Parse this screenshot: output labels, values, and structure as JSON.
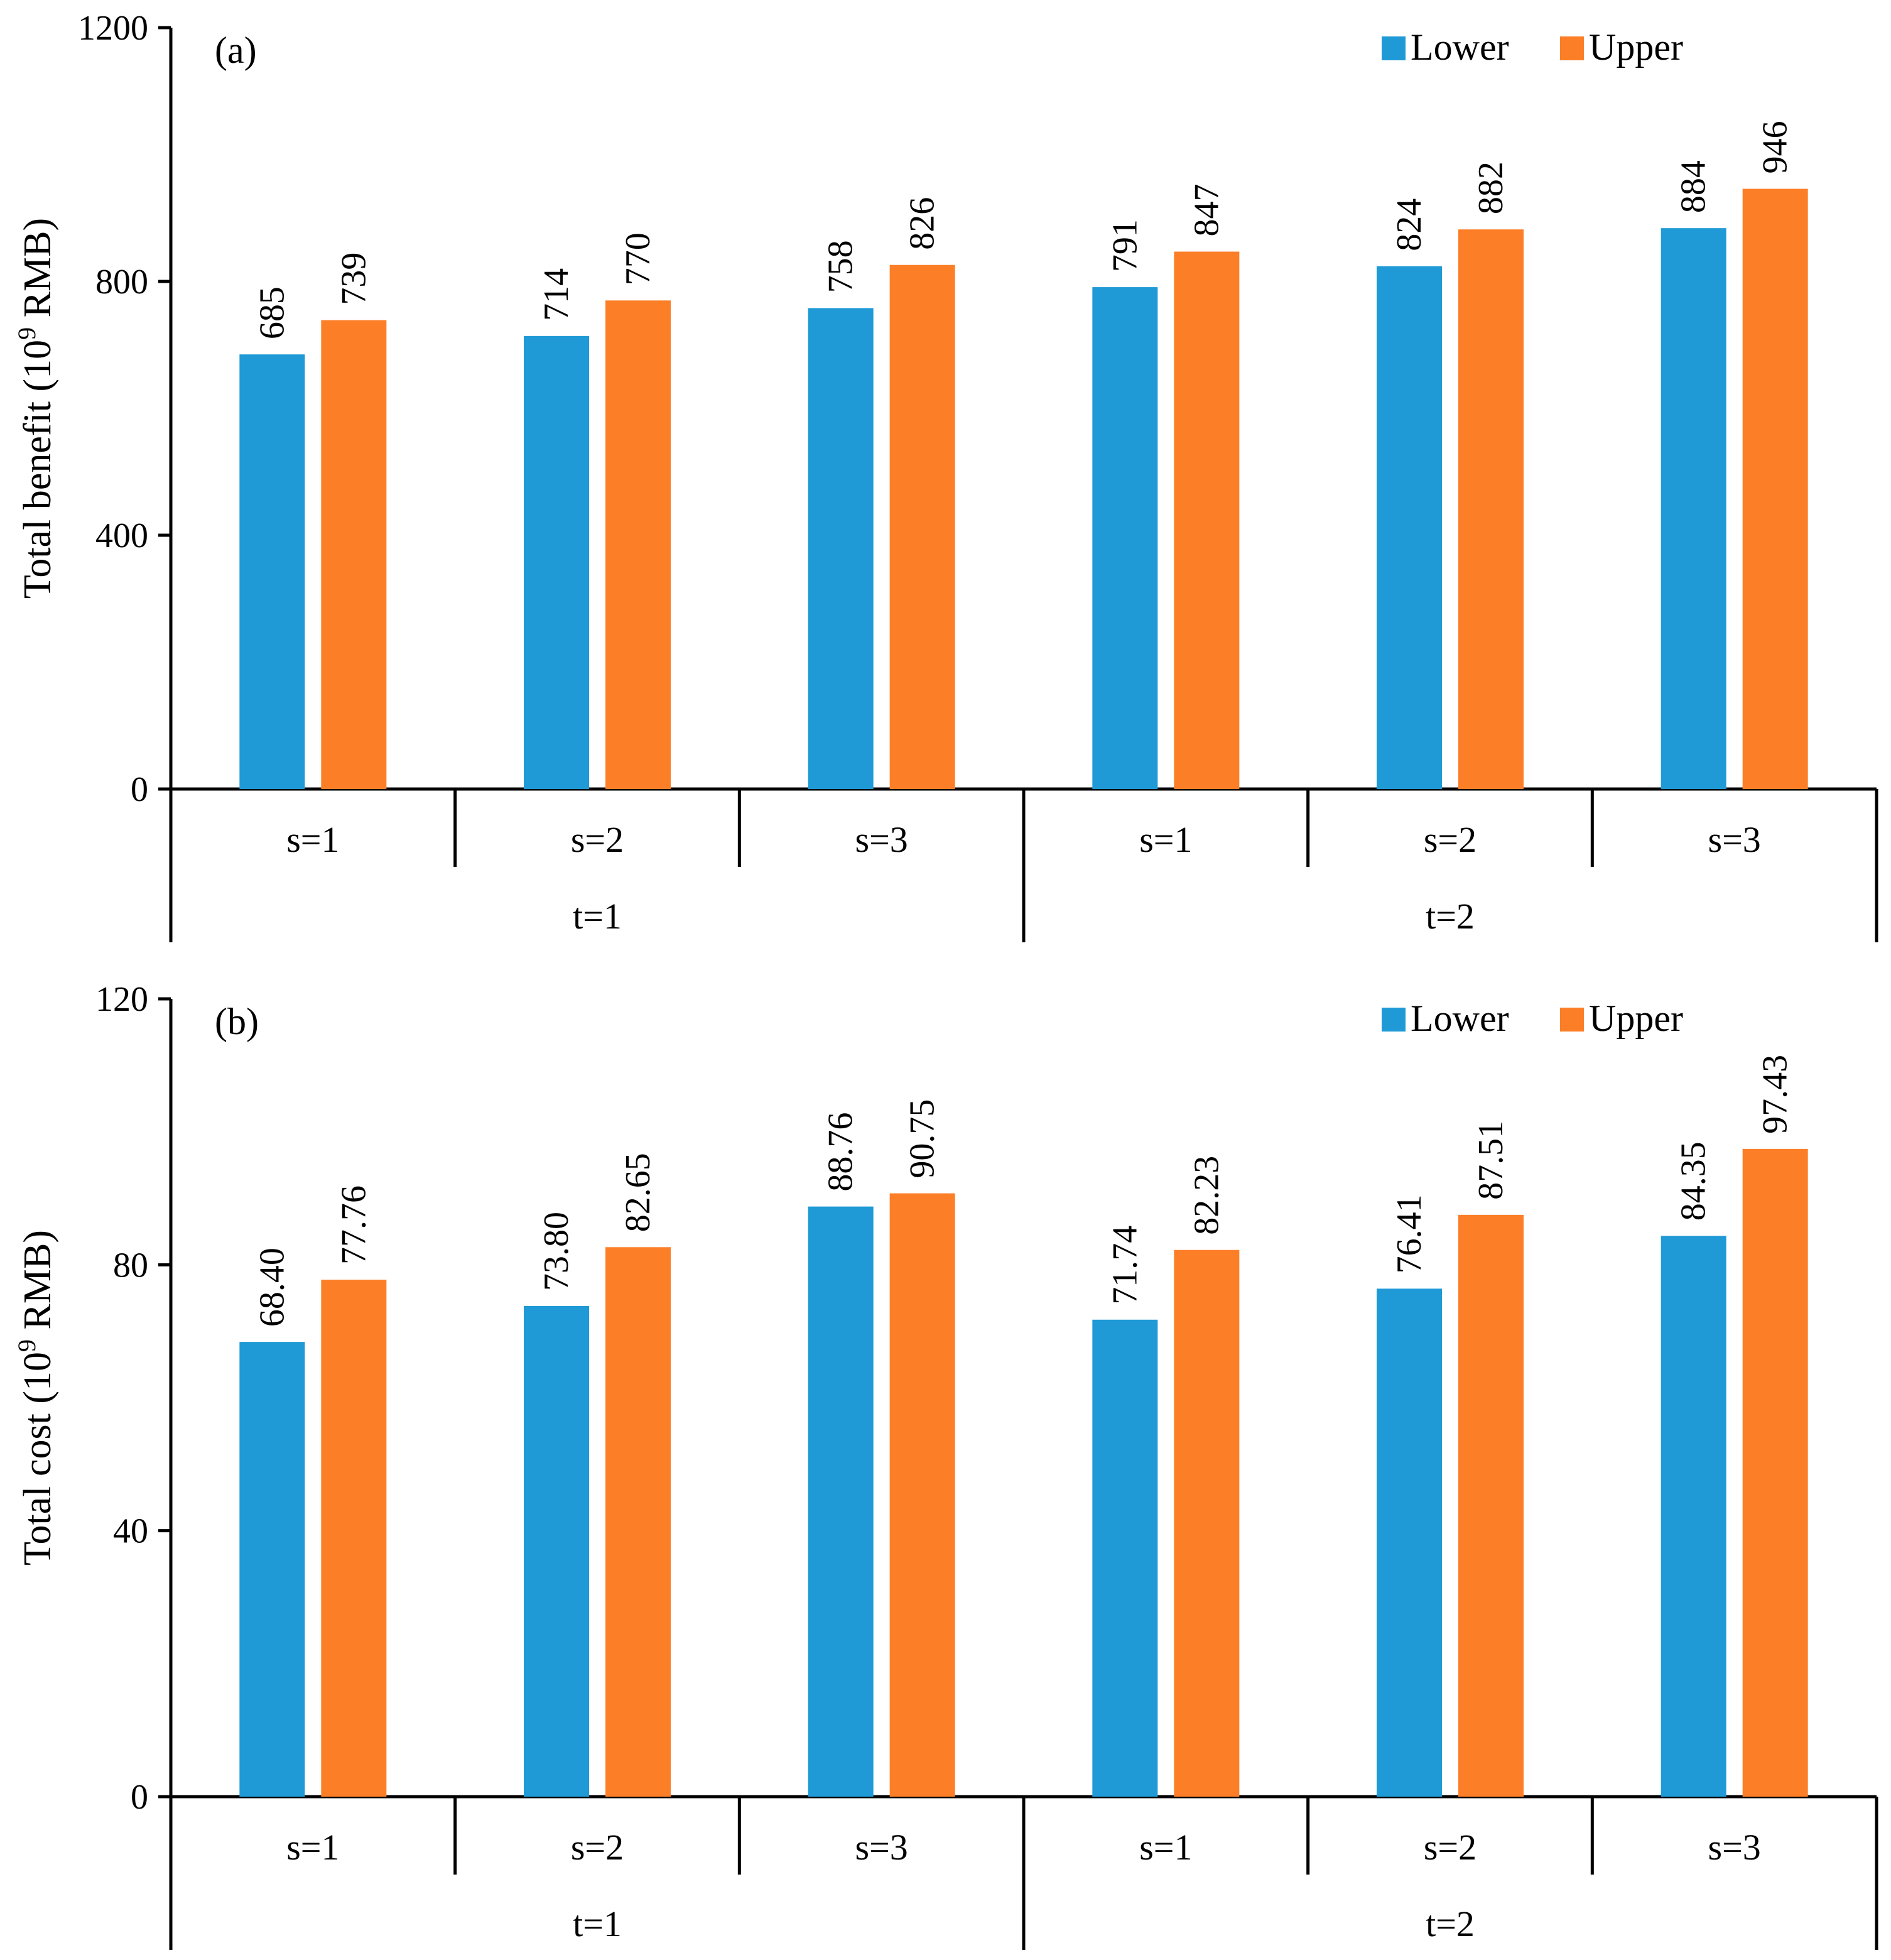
{
  "legend": {
    "lower_label": "Lower",
    "upper_label": "Upper"
  },
  "colors": {
    "lower": "#1f9ad6",
    "upper": "#fc7f28",
    "axis": "#000000"
  },
  "chart_data": [
    {
      "type": "bar",
      "panel_label": "(a)",
      "ylabel_main": "Total benefit (10",
      "ylabel_exp": "9",
      "ylabel_tail": " RMB)",
      "ylim": [
        0,
        1200
      ],
      "yticks": [
        0,
        400,
        800,
        1200
      ],
      "ytick_labels": [
        "0",
        "400",
        "800",
        "1200"
      ],
      "categories": [
        "s=1",
        "s=2",
        "s=3",
        "s=1",
        "s=2",
        "s=3"
      ],
      "groups": [
        {
          "label": "t=1",
          "span": [
            0,
            2
          ]
        },
        {
          "label": "t=2",
          "span": [
            3,
            5
          ]
        }
      ],
      "legend_position": "top-right",
      "series": [
        {
          "name": "Lower",
          "values": [
            685,
            714,
            758,
            791,
            824,
            884
          ],
          "labels": [
            "685",
            "714",
            "758",
            "791",
            "824",
            "884"
          ]
        },
        {
          "name": "Upper",
          "values": [
            739,
            770,
            826,
            847,
            882,
            946
          ],
          "labels": [
            "739",
            "770",
            "826",
            "847",
            "882",
            "946"
          ]
        }
      ]
    },
    {
      "type": "bar",
      "panel_label": "(b)",
      "ylabel_main": "Total cost (10",
      "ylabel_exp": "9",
      "ylabel_tail": " RMB)",
      "ylim": [
        0,
        120
      ],
      "yticks": [
        0,
        40,
        80,
        120
      ],
      "ytick_labels": [
        "0",
        "40",
        "80",
        "120"
      ],
      "categories": [
        "s=1",
        "s=2",
        "s=3",
        "s=1",
        "s=2",
        "s=3"
      ],
      "groups": [
        {
          "label": "t=1",
          "span": [
            0,
            2
          ]
        },
        {
          "label": "t=2",
          "span": [
            3,
            5
          ]
        }
      ],
      "legend_position": "top-right",
      "series": [
        {
          "name": "Lower",
          "values": [
            68.4,
            73.8,
            88.76,
            71.74,
            76.41,
            84.35
          ],
          "labels": [
            "68.40",
            "73.80",
            "88.76",
            "71.74",
            "76.41",
            "84.35"
          ]
        },
        {
          "name": "Upper",
          "values": [
            77.76,
            82.65,
            90.75,
            82.23,
            87.51,
            97.43
          ],
          "labels": [
            "77.76",
            "82.65",
            "90.75",
            "82.23",
            "87.51",
            "97.43"
          ]
        }
      ]
    }
  ]
}
